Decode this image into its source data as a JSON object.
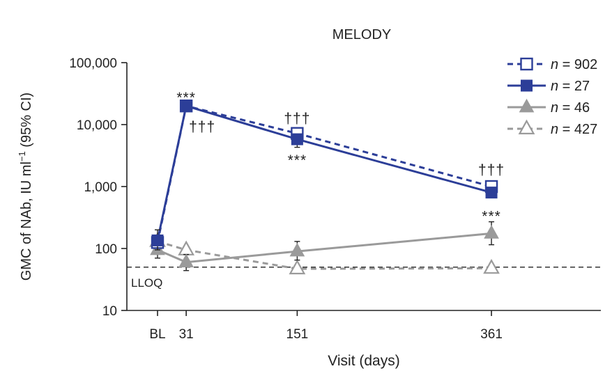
{
  "chart_data": {
    "type": "line",
    "title": "MELODY",
    "xlabel": "Visit (days)",
    "ylabel": "GMC of NAb, IU ml",
    "ylabel_sup": "−1",
    "ylabel_suffix": " (95% CI)",
    "yscale": "log",
    "ylim": [
      10,
      100000
    ],
    "y_ticks": [
      10,
      100,
      1000,
      10000,
      100000
    ],
    "y_tick_labels": [
      "10",
      "100",
      "1,000",
      "10,000",
      "100,000"
    ],
    "x_ticks": [
      0,
      31,
      151,
      361
    ],
    "x_tick_labels": [
      "BL",
      "31",
      "151",
      "361"
    ],
    "xlim": [
      0,
      470
    ],
    "lloq": {
      "value": 50,
      "label": "LLOQ"
    },
    "colors": {
      "blue": "#2c3e98",
      "gray": "#9a9a9a",
      "axis": "#222222"
    },
    "series": [
      {
        "name": "n = 902",
        "n_prefix": "n",
        "n_value": "= 902",
        "color": "#2c3e98",
        "line": "dashed",
        "marker": "square-open",
        "x": [
          0,
          31,
          151,
          361
        ],
        "values": [
          125,
          20000,
          7200,
          1000
        ],
        "ci_low": [
          null,
          null,
          null,
          null
        ],
        "ci_high": [
          null,
          null,
          null,
          null
        ]
      },
      {
        "name": "n = 27",
        "n_prefix": "n",
        "n_value": "= 27",
        "color": "#2c3e98",
        "line": "solid",
        "marker": "square-filled",
        "x": [
          0,
          31,
          151,
          361
        ],
        "values": [
          135,
          20000,
          5800,
          800
        ],
        "ci_low": [
          95,
          null,
          4300,
          700
        ],
        "ci_high": [
          200,
          null,
          7000,
          930
        ]
      },
      {
        "name": "n = 46",
        "n_prefix": "n",
        "n_value": "= 46",
        "color": "#9a9a9a",
        "line": "solid",
        "marker": "triangle-filled",
        "x": [
          0,
          31,
          151,
          361
        ],
        "values": [
          95,
          60,
          90,
          175
        ],
        "ci_low": [
          70,
          44,
          65,
          115
        ],
        "ci_high": [
          135,
          80,
          130,
          270
        ]
      },
      {
        "name": "n = 427",
        "n_prefix": "n",
        "n_value": "= 427",
        "color": "#9a9a9a",
        "line": "dashed",
        "marker": "triangle-open",
        "x": [
          0,
          31,
          151,
          361
        ],
        "values": [
          130,
          95,
          47,
          48
        ],
        "ci_low": [
          null,
          null,
          null,
          null
        ],
        "ci_high": [
          null,
          null,
          null,
          null
        ]
      }
    ],
    "annotations": [
      {
        "text": "***",
        "x": 31,
        "y": 28000,
        "anchor": "above"
      },
      {
        "text": "†††",
        "x": 31,
        "y": 9000,
        "anchor": "right"
      },
      {
        "text": "†††",
        "x": 151,
        "y": 13000,
        "anchor": "above"
      },
      {
        "text": "***",
        "x": 151,
        "y": 3200,
        "anchor": "below"
      },
      {
        "text": "†††",
        "x": 361,
        "y": 1900,
        "anchor": "above"
      },
      {
        "text": "***",
        "x": 361,
        "y": 400,
        "anchor": "below"
      }
    ]
  }
}
